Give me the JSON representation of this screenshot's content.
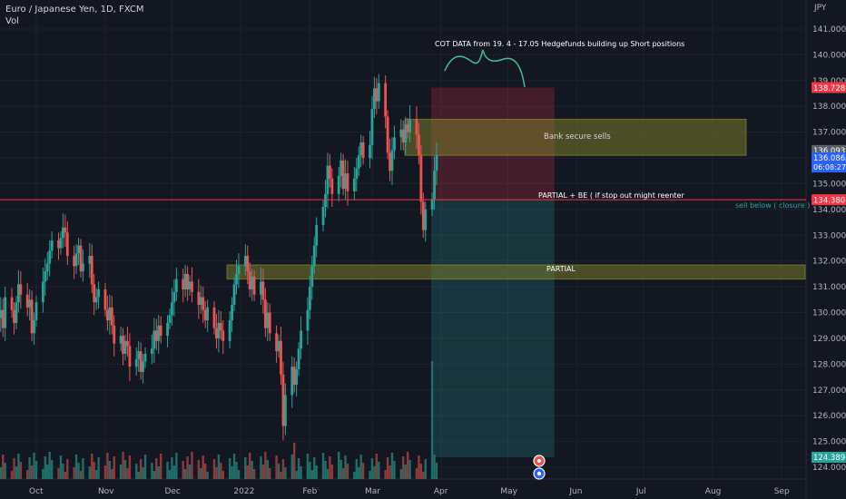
{
  "title": "Euro / Japanese Yen, 1D, FXCM",
  "subtitle": "Vol",
  "chart_data": {
    "type": "candlestick",
    "title": "Euro / Japanese Yen, 1D, FXCM",
    "volume_label": "Vol",
    "y_unit": "JPY",
    "ylim": [
      123.5,
      142.0
    ],
    "y_ticks": [
      "141.000",
      "140.000",
      "139.000",
      "138.000",
      "137.000",
      "136.000",
      "135.000",
      "134.000",
      "133.000",
      "132.000",
      "131.000",
      "130.000",
      "129.000",
      "128.000",
      "127.000",
      "126.000",
      "125.000",
      "124.000"
    ],
    "x_tick_labels": [
      "Oct",
      "Nov",
      "Dec",
      "2022",
      "Feb",
      "Mar",
      "Apr",
      "May",
      "Jun",
      "Jul",
      "Aug",
      "Sep"
    ],
    "months": [
      {
        "label": "Oct",
        "days": 31
      },
      {
        "label": "Nov",
        "days": 30
      },
      {
        "label": "Dec",
        "days": 31
      },
      {
        "label": "2022",
        "days": 31
      },
      {
        "label": "Feb",
        "days": 28
      },
      {
        "label": "Mar",
        "days": 31
      },
      {
        "label": "Apr",
        "days": 30
      },
      {
        "label": "May",
        "days": 31
      },
      {
        "label": "Jun",
        "days": 30
      },
      {
        "label": "Jul",
        "days": 31
      },
      {
        "label": "Aug",
        "days": 31
      },
      {
        "label": "Sep",
        "days": 30
      }
    ],
    "series_start": "2021-09-13",
    "grid": true,
    "colors": {
      "up": "#26a69a",
      "down": "#ef5350",
      "up_vol": "#1f6f68",
      "down_vol": "#8d3a3b",
      "background": "#131722",
      "grid": "#1e222d",
      "horizontal_line": "#f23645",
      "box": "#7a7a2a",
      "stop_zone": "#f23645",
      "target_zone": "#26a69a"
    },
    "closes": [
      130.35,
      129.8,
      130.1,
      129.4,
      130.6,
      130.1,
      129.6,
      130.4,
      131.1,
      130.7,
      130.2,
      130.5,
      129.2,
      129.7,
      130.4,
      131.2,
      131.6,
      131.9,
      132.4,
      132.8,
      132.5,
      132.9,
      133.3,
      133.1,
      132.2,
      131.8,
      132.3,
      132.6,
      131.6,
      131.9,
      132.2,
      131.1,
      130.4,
      130.6,
      130.9,
      130.1,
      129.7,
      130.2,
      129.5,
      128.8,
      129.1,
      128.4,
      128.9,
      128.7,
      127.9,
      128.2,
      128.5,
      127.7,
      128.1,
      128.4,
      128.6,
      129.3,
      128.9,
      129.5,
      129.1,
      129.6,
      129.9,
      130.4,
      130.8,
      131.3,
      130.9,
      131.5,
      130.9,
      131.2,
      130.8,
      130.3,
      130.6,
      130.1,
      129.7,
      130.2,
      129.4,
      129.0,
      129.6,
      129.3,
      128.9,
      129.7,
      130.3,
      131.1,
      131.5,
      131.8,
      132.2,
      131.6,
      130.9,
      131.4,
      130.7,
      131.2,
      130.5,
      129.4,
      130.0,
      129.2,
      128.5,
      128.9,
      127.6,
      125.6,
      126.8,
      127.9,
      127.2,
      127.8,
      128.6,
      129.3,
      130.1,
      131.0,
      131.8,
      132.6,
      133.4,
      134.1,
      134.6,
      135.7,
      135.2,
      134.6,
      135.3,
      135.9,
      134.8,
      135.4,
      134.7,
      135.2,
      135.6,
      136.1,
      136.6,
      136.0,
      136.5,
      137.9,
      138.7,
      138.2,
      138.9,
      137.6,
      136.2,
      135.5,
      136.3,
      136.8,
      137.1,
      136.6,
      137.3,
      137.0,
      137.5,
      136.9,
      136.1,
      134.3,
      133.2,
      134.0,
      134.4,
      135.5,
      136.1
    ]
  },
  "annotations": {
    "cot_text": "COT DATA from 19. 4 - 17.05 Hedgefunds building up Short positions",
    "bank_text": "Bank secure sells",
    "partial_be_text": "PARTIAL + BE ( if stop out might reenter",
    "sell_below_text": "sell below ( closure )",
    "partial_text": "PARTIAL"
  },
  "price_labels": {
    "stop": "138.728",
    "previous_close": "136.093",
    "last": "136.086",
    "countdown": "06:08:27",
    "entry_line": "134.380",
    "target": "124.389"
  }
}
